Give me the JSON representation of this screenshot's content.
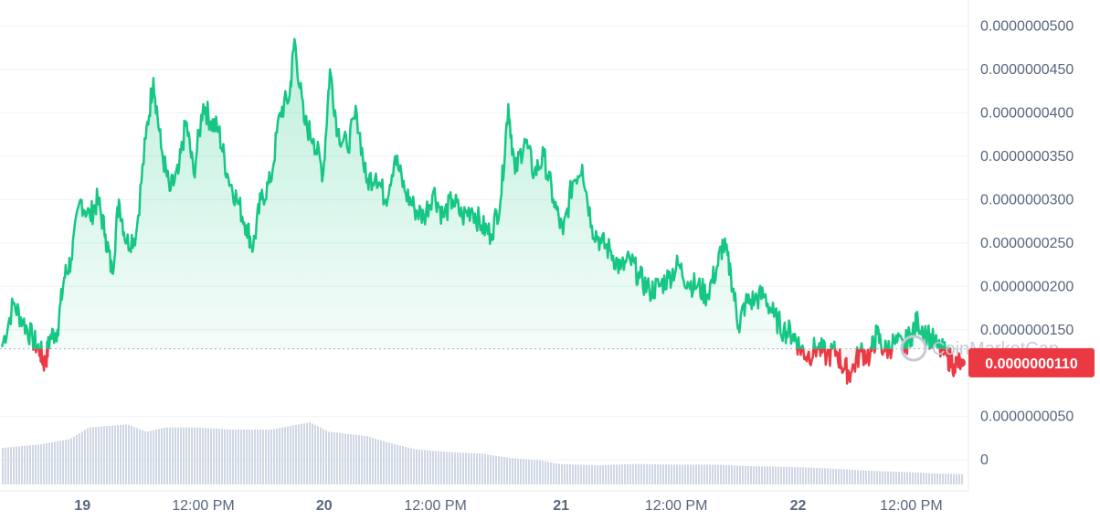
{
  "chart_data": {
    "type": "line",
    "watermark": "CoinMarketCap",
    "current_price_label": "0.0000000110",
    "baseline": 1.28e-08,
    "y_ticks": [
      "0.0000000500",
      "0.0000000450",
      "0.0000000400",
      "0.0000000350",
      "0.0000000300",
      "0.0000000250",
      "0.0000000200",
      "0.0000000150",
      "0.0000000050",
      "0"
    ],
    "ylim": [
      0,
      5.3e-08
    ],
    "x_ticks": [
      {
        "label": "19",
        "t": 0.084,
        "bold": true
      },
      {
        "label": "12:00 PM",
        "t": 0.21,
        "bold": false
      },
      {
        "label": "20",
        "t": 0.336,
        "bold": true
      },
      {
        "label": "12:00 PM",
        "t": 0.452,
        "bold": false
      },
      {
        "label": "21",
        "t": 0.583,
        "bold": true
      },
      {
        "label": "12:00 PM",
        "t": 0.703,
        "bold": false
      },
      {
        "label": "22",
        "t": 0.83,
        "bold": true
      },
      {
        "label": "12:00 PM",
        "t": 0.948,
        "bold": false
      }
    ],
    "price_series": [
      [
        0.0,
        1.3e-08
      ],
      [
        0.012,
        1.8e-08
      ],
      [
        0.022,
        1.6e-08
      ],
      [
        0.032,
        1.4e-08
      ],
      [
        0.04,
        1.25e-08
      ],
      [
        0.045,
        1.1e-08
      ],
      [
        0.05,
        1.4e-08
      ],
      [
        0.058,
        1.5e-08
      ],
      [
        0.065,
        2.1e-08
      ],
      [
        0.072,
        2.3e-08
      ],
      [
        0.082,
        3e-08
      ],
      [
        0.092,
        2.8e-08
      ],
      [
        0.1,
        3e-08
      ],
      [
        0.108,
        2.6e-08
      ],
      [
        0.115,
        2.15e-08
      ],
      [
        0.122,
        3e-08
      ],
      [
        0.13,
        2.5e-08
      ],
      [
        0.14,
        2.6e-08
      ],
      [
        0.15,
        3.7e-08
      ],
      [
        0.158,
        4.4e-08
      ],
      [
        0.166,
        3.6e-08
      ],
      [
        0.175,
        3.1e-08
      ],
      [
        0.184,
        3.3e-08
      ],
      [
        0.192,
        3.9e-08
      ],
      [
        0.2,
        3.3e-08
      ],
      [
        0.21,
        4.1e-08
      ],
      [
        0.218,
        3.9e-08
      ],
      [
        0.226,
        3.8e-08
      ],
      [
        0.235,
        3.3e-08
      ],
      [
        0.245,
        3e-08
      ],
      [
        0.255,
        2.7e-08
      ],
      [
        0.262,
        2.45e-08
      ],
      [
        0.27,
        3e-08
      ],
      [
        0.28,
        3.2e-08
      ],
      [
        0.29,
        4e-08
      ],
      [
        0.3,
        4.2e-08
      ],
      [
        0.305,
        4.85e-08
      ],
      [
        0.315,
        3.9e-08
      ],
      [
        0.325,
        3.7e-08
      ],
      [
        0.335,
        3.3e-08
      ],
      [
        0.342,
        4.5e-08
      ],
      [
        0.35,
        3.8e-08
      ],
      [
        0.36,
        3.6e-08
      ],
      [
        0.37,
        4e-08
      ],
      [
        0.38,
        3.2e-08
      ],
      [
        0.39,
        3.3e-08
      ],
      [
        0.4,
        3e-08
      ],
      [
        0.41,
        3.5e-08
      ],
      [
        0.42,
        3.1e-08
      ],
      [
        0.43,
        2.9e-08
      ],
      [
        0.44,
        2.8e-08
      ],
      [
        0.45,
        3.1e-08
      ],
      [
        0.46,
        2.8e-08
      ],
      [
        0.47,
        3e-08
      ],
      [
        0.48,
        2.8e-08
      ],
      [
        0.49,
        2.9e-08
      ],
      [
        0.5,
        2.7e-08
      ],
      [
        0.51,
        2.6e-08
      ],
      [
        0.52,
        3e-08
      ],
      [
        0.528,
        4.1e-08
      ],
      [
        0.535,
        3.3e-08
      ],
      [
        0.545,
        3.7e-08
      ],
      [
        0.555,
        3.3e-08
      ],
      [
        0.565,
        3.5e-08
      ],
      [
        0.575,
        3e-08
      ],
      [
        0.585,
        2.6e-08
      ],
      [
        0.595,
        3.2e-08
      ],
      [
        0.605,
        3.4e-08
      ],
      [
        0.615,
        2.7e-08
      ],
      [
        0.625,
        2.5e-08
      ],
      [
        0.635,
        2.4e-08
      ],
      [
        0.645,
        2.2e-08
      ],
      [
        0.655,
        2.3e-08
      ],
      [
        0.665,
        2.1e-08
      ],
      [
        0.675,
        1.95e-08
      ],
      [
        0.685,
        2e-08
      ],
      [
        0.695,
        2.1e-08
      ],
      [
        0.705,
        2.25e-08
      ],
      [
        0.715,
        2.05e-08
      ],
      [
        0.725,
        2e-08
      ],
      [
        0.735,
        1.9e-08
      ],
      [
        0.745,
        2.2e-08
      ],
      [
        0.752,
        2.5e-08
      ],
      [
        0.76,
        2.15e-08
      ],
      [
        0.768,
        1.55e-08
      ],
      [
        0.775,
        1.8e-08
      ],
      [
        0.785,
        1.85e-08
      ],
      [
        0.795,
        1.9e-08
      ],
      [
        0.805,
        1.65e-08
      ],
      [
        0.815,
        1.5e-08
      ],
      [
        0.825,
        1.45e-08
      ],
      [
        0.832,
        1.3e-08
      ],
      [
        0.84,
        1.2e-08
      ],
      [
        0.85,
        1.3e-08
      ],
      [
        0.86,
        1.2e-08
      ],
      [
        0.87,
        1.25e-08
      ],
      [
        0.878,
        1.05e-08
      ],
      [
        0.885,
        1e-08
      ],
      [
        0.895,
        1.25e-08
      ],
      [
        0.905,
        1.2e-08
      ],
      [
        0.912,
        1.45e-08
      ],
      [
        0.92,
        1.25e-08
      ],
      [
        0.93,
        1.35e-08
      ],
      [
        0.94,
        1.3e-08
      ],
      [
        0.948,
        1.45e-08
      ],
      [
        0.955,
        1.6e-08
      ],
      [
        0.965,
        1.45e-08
      ],
      [
        0.975,
        1.3e-08
      ],
      [
        0.985,
        1.2e-08
      ],
      [
        0.993,
        1.1e-08
      ],
      [
        1.0,
        1.12e-08
      ]
    ],
    "volume_series": [
      [
        0.0,
        0.5
      ],
      [
        0.04,
        0.55
      ],
      [
        0.07,
        0.62
      ],
      [
        0.09,
        0.78
      ],
      [
        0.13,
        0.82
      ],
      [
        0.15,
        0.72
      ],
      [
        0.17,
        0.78
      ],
      [
        0.2,
        0.78
      ],
      [
        0.24,
        0.75
      ],
      [
        0.28,
        0.75
      ],
      [
        0.3,
        0.8
      ],
      [
        0.32,
        0.85
      ],
      [
        0.34,
        0.72
      ],
      [
        0.38,
        0.66
      ],
      [
        0.4,
        0.58
      ],
      [
        0.43,
        0.48
      ],
      [
        0.47,
        0.44
      ],
      [
        0.5,
        0.42
      ],
      [
        0.53,
        0.36
      ],
      [
        0.56,
        0.33
      ],
      [
        0.58,
        0.28
      ],
      [
        0.62,
        0.26
      ],
      [
        0.66,
        0.28
      ],
      [
        0.7,
        0.27
      ],
      [
        0.74,
        0.27
      ],
      [
        0.78,
        0.25
      ],
      [
        0.82,
        0.24
      ],
      [
        0.86,
        0.22
      ],
      [
        0.9,
        0.19
      ],
      [
        0.94,
        0.17
      ],
      [
        0.97,
        0.15
      ],
      [
        1.0,
        0.14
      ]
    ],
    "colors": {
      "up": "#16c784",
      "down": "#ea3943",
      "volume": "#cfd6e4",
      "grid": "#eff2f5",
      "tick_text": "#58667e",
      "badge": "#ea3943"
    }
  }
}
